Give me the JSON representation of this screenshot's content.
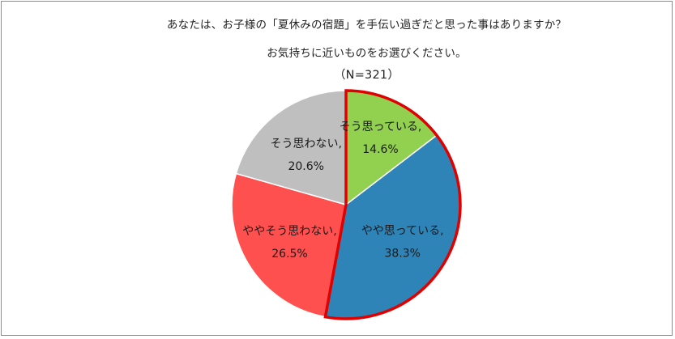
{
  "title": {
    "line1": "あなたは、お子様の「夏休みの宿題」を手伝い過ぎだと思った事はありますか？",
    "line2": "お気持ちに近いものをお選びください。",
    "line3": "（N=321）"
  },
  "chart_data": {
    "type": "pie",
    "title": "あなたは、お子様の「夏休みの宿題」を手伝い過ぎだと思った事はありますか？ お気持ちに近いものをお選びください。",
    "n": 321,
    "start_angle_deg": 0,
    "direction": "clockwise",
    "slices": [
      {
        "label": "そう思っている,",
        "value": 14.6,
        "value_label": "14.6%",
        "color": "#92d050",
        "highlight": false
      },
      {
        "label": "やや思っている,",
        "value": 38.3,
        "value_label": "38.3%",
        "color": "#2e83b7",
        "highlight": true
      },
      {
        "label": "ややそう思わない,",
        "value": 26.5,
        "value_label": "26.5%",
        "color": "#ff5050",
        "highlight": false
      },
      {
        "label": "そう思わない,",
        "value": 20.6,
        "value_label": "20.6%",
        "color": "#bfbfbf",
        "highlight": false
      }
    ],
    "highlight_color": "#e00000"
  }
}
